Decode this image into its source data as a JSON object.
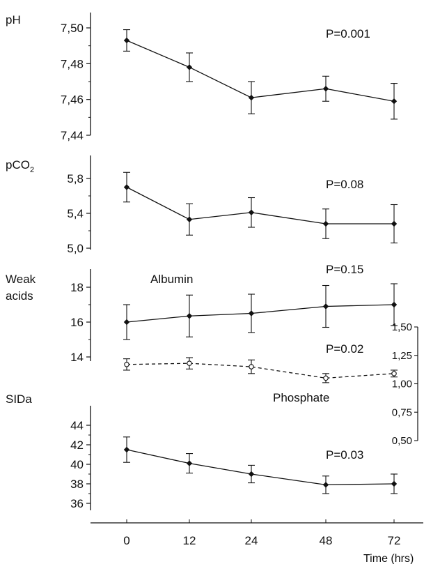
{
  "chart_data": [
    {
      "type": "line",
      "ylabel": "pH",
      "x": [
        "0",
        "12",
        "24",
        "48",
        "72"
      ],
      "series": [
        {
          "values": [
            7.493,
            7.478,
            7.461,
            7.466,
            7.459
          ],
          "error": [
            0.006,
            0.008,
            0.009,
            0.007,
            0.01
          ]
        }
      ],
      "ylim": [
        7.44,
        7.51
      ],
      "yticks": [
        "7,44",
        "7,46",
        "7,48",
        "7,50"
      ],
      "annotation": "P=0.001"
    },
    {
      "type": "line",
      "ylabel": "pCO",
      "ylabel_sub": "2",
      "x": [
        "0",
        "12",
        "24",
        "48",
        "72"
      ],
      "series": [
        {
          "values": [
            5.7,
            5.33,
            5.41,
            5.28,
            5.28
          ],
          "error": [
            0.17,
            0.18,
            0.17,
            0.17,
            0.22
          ]
        }
      ],
      "ylim": [
        5.0,
        6.0
      ],
      "yticks": [
        "5,0",
        "5,4",
        "5,8"
      ],
      "annotation": "P=0.08"
    },
    {
      "type": "line",
      "ylabel": "Weak",
      "ylabel_line2": "acids",
      "x": [
        "0",
        "12",
        "24",
        "48",
        "72"
      ],
      "series": [
        {
          "name": "Albumin",
          "axis": "left",
          "values": [
            16.0,
            16.35,
            16.5,
            16.9,
            17.0
          ],
          "error": [
            1.0,
            1.2,
            1.1,
            1.2,
            1.2
          ]
        },
        {
          "name": "Phosphate",
          "axis": "right",
          "dashed": true,
          "values": [
            1.17,
            1.18,
            1.15,
            1.05,
            1.09
          ],
          "error": [
            0.05,
            0.05,
            0.06,
            0.04,
            0.03
          ]
        }
      ],
      "ylim": [
        13.8,
        19.0
      ],
      "yticks": [
        "14",
        "16",
        "18"
      ],
      "y2lim": [
        0.5,
        1.5
      ],
      "y2ticks": [
        "0,50",
        "0,75",
        "1,00",
        "1,25",
        "1,50"
      ],
      "annotations": [
        "P=0.15",
        "P=0.02"
      ]
    },
    {
      "type": "line",
      "ylabel": "SIDa",
      "x": [
        "0",
        "12",
        "24",
        "48",
        "72"
      ],
      "series": [
        {
          "values": [
            41.5,
            40.1,
            39.0,
            37.9,
            38.0
          ],
          "error": [
            1.3,
            1.0,
            0.9,
            0.9,
            1.0
          ]
        }
      ],
      "ylim": [
        36,
        44
      ],
      "yticks": [
        "36",
        "38",
        "40",
        "42",
        "44"
      ],
      "annotation": "P=0.03"
    }
  ],
  "x_axis": {
    "ticks": [
      "0",
      "12",
      "24",
      "48",
      "72"
    ],
    "label": "Time (hrs)"
  }
}
